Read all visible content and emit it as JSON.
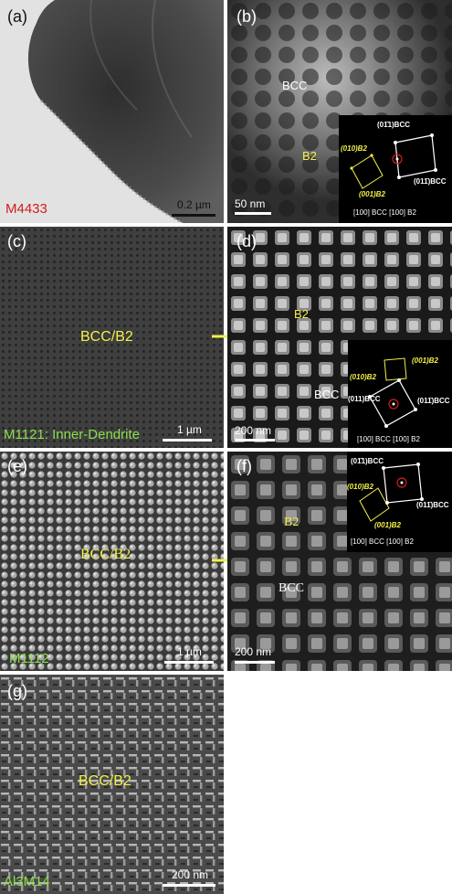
{
  "panels": {
    "a": {
      "label": "(a)",
      "alloy": "M4433",
      "scale": "0.2 µm"
    },
    "b": {
      "label": "(b)",
      "phase1": "BCC",
      "phase2": "B2",
      "scale": "50 nm",
      "sad": {
        "s1": "(01̄1)BCC",
        "s2": "(010)B2",
        "s3": "(001)B2",
        "s4": "(011̄)BCC",
        "zone": "[100] BCC [100] B2"
      }
    },
    "c": {
      "label": "(c)",
      "phase": "BCC/B2",
      "caption": "M1121: Inner-Dendrite",
      "scale": "1 µm"
    },
    "d": {
      "label": "(d)",
      "phase1": "B2",
      "phase2": "BCC",
      "scale": "200 nm",
      "sad": {
        "s1": "(010)B2",
        "s2": "(001)B2",
        "s3": "(011)BCC",
        "s4": "(011̄)BCC",
        "zone": "[100] BCC [100] B2"
      }
    },
    "e": {
      "label": "(e)",
      "phase": "BCC/B2",
      "alloy": "M1112",
      "scale": "1 µm"
    },
    "f": {
      "label": "(f)",
      "phase1": "B2",
      "phase2": "BCC",
      "scale": "200 nm",
      "sad": {
        "s1": "(01̄1)BCC",
        "s2": "(010)B2",
        "s3": "(011̄)BCC",
        "s4": "(001)B2",
        "zone": "[100] BCC [100] B2"
      }
    },
    "g": {
      "label": "(g)",
      "phase": "BCC/B2",
      "alloy": "Al3M14",
      "scale": "200 nm"
    }
  }
}
